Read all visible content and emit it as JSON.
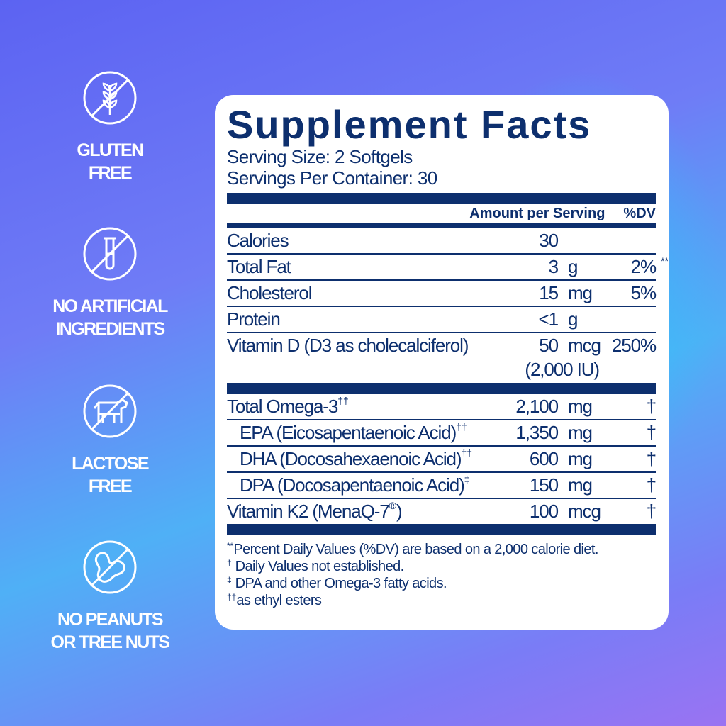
{
  "badges": [
    {
      "icon": "no-gluten-wheat-icon",
      "label_lines": [
        "GLUTEN",
        "FREE"
      ]
    },
    {
      "icon": "no-test-tube-icon",
      "label_lines": [
        "NO ARTIFICIAL",
        "INGREDIENTS"
      ]
    },
    {
      "icon": "no-cow-icon",
      "label_lines": [
        "LACTOSE",
        "FREE"
      ]
    },
    {
      "icon": "no-peanut-icon",
      "label_lines": [
        "NO PEANUTS",
        "OR TREE NUTS"
      ]
    }
  ],
  "facts": {
    "title": "Supplement Facts",
    "serving_size": "Serving Size: 2 Softgels",
    "servings_per_container": "Servings Per Container: 30",
    "header_amount": "Amount per Serving",
    "header_dv": "%DV",
    "rows": [
      {
        "label": "Calories",
        "sup": "",
        "amount": "30",
        "unit": "",
        "dv": "",
        "dv_sup": ""
      },
      {
        "label": "Total Fat",
        "sup": "",
        "amount": "3",
        "unit": "g",
        "dv": "2%",
        "dv_sup": "**"
      },
      {
        "label": "Cholesterol",
        "sup": "",
        "amount": "15",
        "unit": "mg",
        "dv": "5%",
        "dv_sup": ""
      },
      {
        "label": "Protein",
        "sup": "",
        "amount": "<1",
        "unit": "g",
        "dv": "",
        "dv_sup": ""
      },
      {
        "label": "Vitamin D (D3 as cholecalciferol)",
        "sup": "",
        "amount": "50",
        "unit": "mcg",
        "dv": "250%",
        "dv_sup": "",
        "extra": "(2,000 IU)"
      }
    ],
    "rows2": [
      {
        "label": "Total Omega-3",
        "sup": "††",
        "amount": "2,100",
        "unit": "mg",
        "dv": "†"
      },
      {
        "label": "EPA (Eicosapentaenoic Acid)",
        "sup": "††",
        "amount": "1,350",
        "unit": "mg",
        "dv": "†"
      },
      {
        "label": "DHA (Docosahexaenoic Acid)",
        "sup": "††",
        "amount": "600",
        "unit": "mg",
        "dv": "†"
      },
      {
        "label": "DPA (Docosapentaenoic Acid)",
        "sup": "‡",
        "amount": "150",
        "unit": "mg",
        "dv": "†"
      },
      {
        "label": "Vitamin K2 (MenaQ-7",
        "sup": "®",
        "label_end": ")",
        "amount": "100",
        "unit": "mcg",
        "dv": "†"
      }
    ],
    "footnotes": [
      {
        "mark": "**",
        "text": "Percent Daily Values (%DV) are based on a 2,000 calorie diet."
      },
      {
        "mark": "†",
        "text": " Daily Values not established."
      },
      {
        "mark": "‡",
        "text": " DPA and other Omega-3 fatty acids."
      },
      {
        "mark": "††",
        "text": "as ethyl esters"
      }
    ]
  },
  "colors": {
    "navy": "#0d2f6e",
    "card": "#ffffff",
    "badge_text": "#ffffff"
  }
}
